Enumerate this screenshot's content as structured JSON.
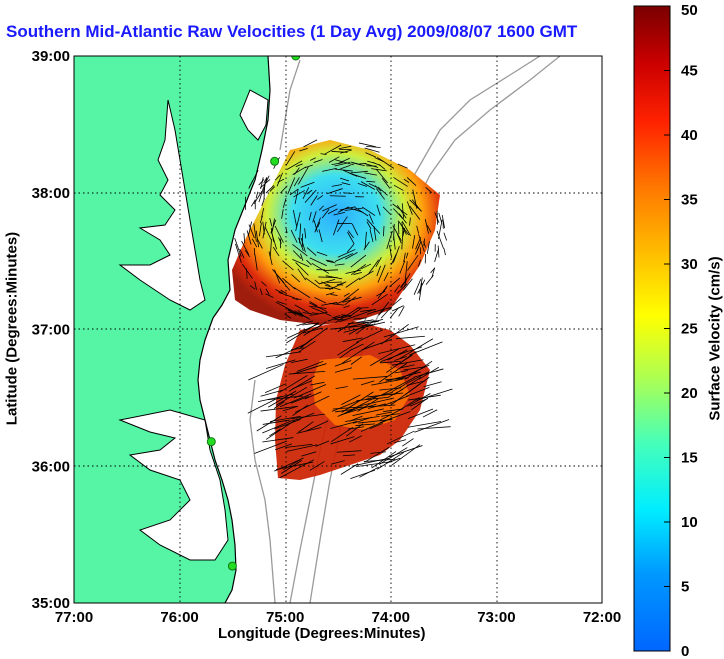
{
  "title": "Southern Mid-Atlantic Raw Velocities (1 Day Avg) 2009/08/07 1600 GMT",
  "x_axis": {
    "label": "Longitude (Degrees:Minutes)",
    "ticks": [
      "77:00",
      "76:00",
      "75:00",
      "74:00",
      "73:00",
      "72:00"
    ],
    "range": [
      -77,
      -72
    ]
  },
  "y_axis": {
    "label": "Latitude (Degrees:Minutes)",
    "ticks": [
      "35:00",
      "36:00",
      "37:00",
      "38:00",
      "39:00"
    ],
    "range": [
      35,
      39
    ]
  },
  "colorbar": {
    "label": "Surface Velocity (cm/s)",
    "ticks": [
      "0",
      "5",
      "10",
      "15",
      "20",
      "25",
      "30",
      "35",
      "40",
      "45",
      "50"
    ],
    "range": [
      0,
      50
    ]
  },
  "colors": {
    "land": "#55f5a5",
    "coast": "#000000",
    "bathymetry": "#9a9a9a",
    "stations": "#22dd22",
    "title": "#1a1aff"
  },
  "stations": [
    {
      "lon": -74.9,
      "lat": 39.0
    },
    {
      "lon": -75.1,
      "lat": 38.23
    },
    {
      "lon": -75.7,
      "lat": 36.18
    },
    {
      "lon": -75.5,
      "lat": 35.27
    }
  ]
}
